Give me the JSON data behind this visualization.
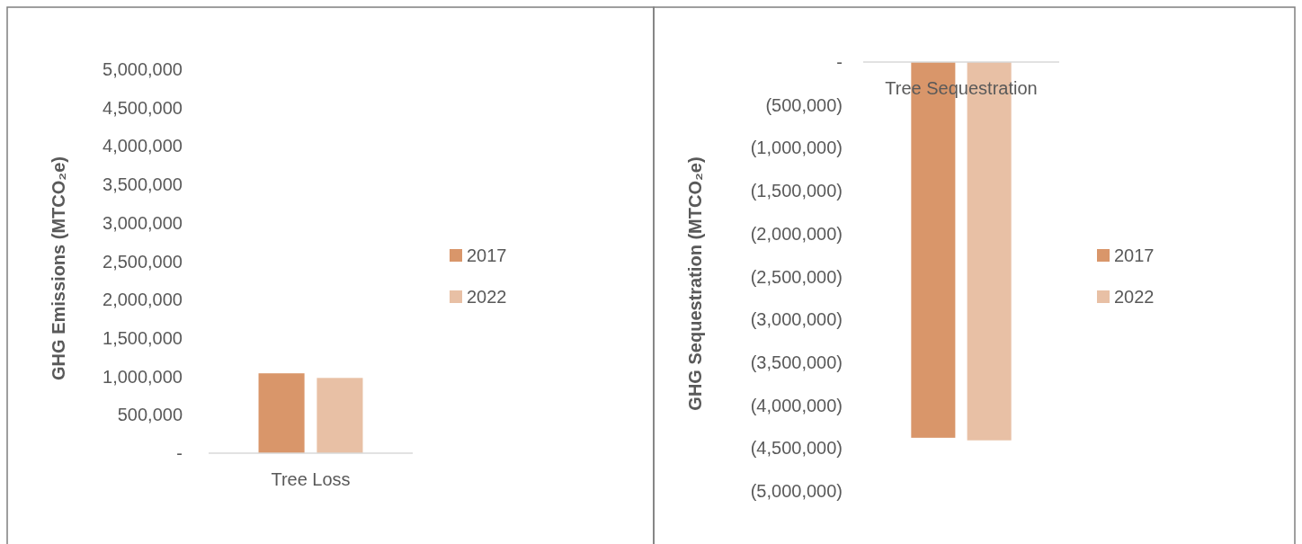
{
  "chart_data": [
    {
      "type": "bar",
      "ylabel": "GHG Emissions (MTCO₂e)",
      "categories": [
        "Tree Loss"
      ],
      "series": [
        {
          "name": "2017",
          "color": "#d9966a",
          "values": [
            1040000
          ]
        },
        {
          "name": "2022",
          "color": "#e8c0a5",
          "values": [
            980000
          ]
        }
      ],
      "ylim": [
        0,
        5000000
      ],
      "yticks": [
        {
          "value": 0,
          "label": "-"
        },
        {
          "value": 500000,
          "label": "500,000"
        },
        {
          "value": 1000000,
          "label": "1,000,000"
        },
        {
          "value": 1500000,
          "label": "1,500,000"
        },
        {
          "value": 2000000,
          "label": "2,000,000"
        },
        {
          "value": 2500000,
          "label": "2,500,000"
        },
        {
          "value": 3000000,
          "label": "3,000,000"
        },
        {
          "value": 3500000,
          "label": "3,500,000"
        },
        {
          "value": 4000000,
          "label": "4,000,000"
        },
        {
          "value": 4500000,
          "label": "4,500,000"
        },
        {
          "value": 5000000,
          "label": "5,000,000"
        }
      ],
      "grid": false,
      "legend": "right"
    },
    {
      "type": "bar",
      "ylabel": "GHG Sequestration (MTCO₂e)",
      "categories": [
        "Tree Sequestration"
      ],
      "series": [
        {
          "name": "2017",
          "color": "#d9966a",
          "values": [
            -4380000
          ]
        },
        {
          "name": "2022",
          "color": "#e8c0a5",
          "values": [
            -4410000
          ]
        }
      ],
      "ylim": [
        -5000000,
        0
      ],
      "yticks": [
        {
          "value": 0,
          "label": "-"
        },
        {
          "value": -500000,
          "label": "(500,000)"
        },
        {
          "value": -1000000,
          "label": "(1,000,000)"
        },
        {
          "value": -1500000,
          "label": "(1,500,000)"
        },
        {
          "value": -2000000,
          "label": "(2,000,000)"
        },
        {
          "value": -2500000,
          "label": "(2,500,000)"
        },
        {
          "value": -3000000,
          "label": "(3,000,000)"
        },
        {
          "value": -3500000,
          "label": "(3,500,000)"
        },
        {
          "value": -4000000,
          "label": "(4,000,000)"
        },
        {
          "value": -4500000,
          "label": "(4,500,000)"
        },
        {
          "value": -5000000,
          "label": "(5,000,000)"
        }
      ],
      "grid": false,
      "legend": "right"
    }
  ]
}
